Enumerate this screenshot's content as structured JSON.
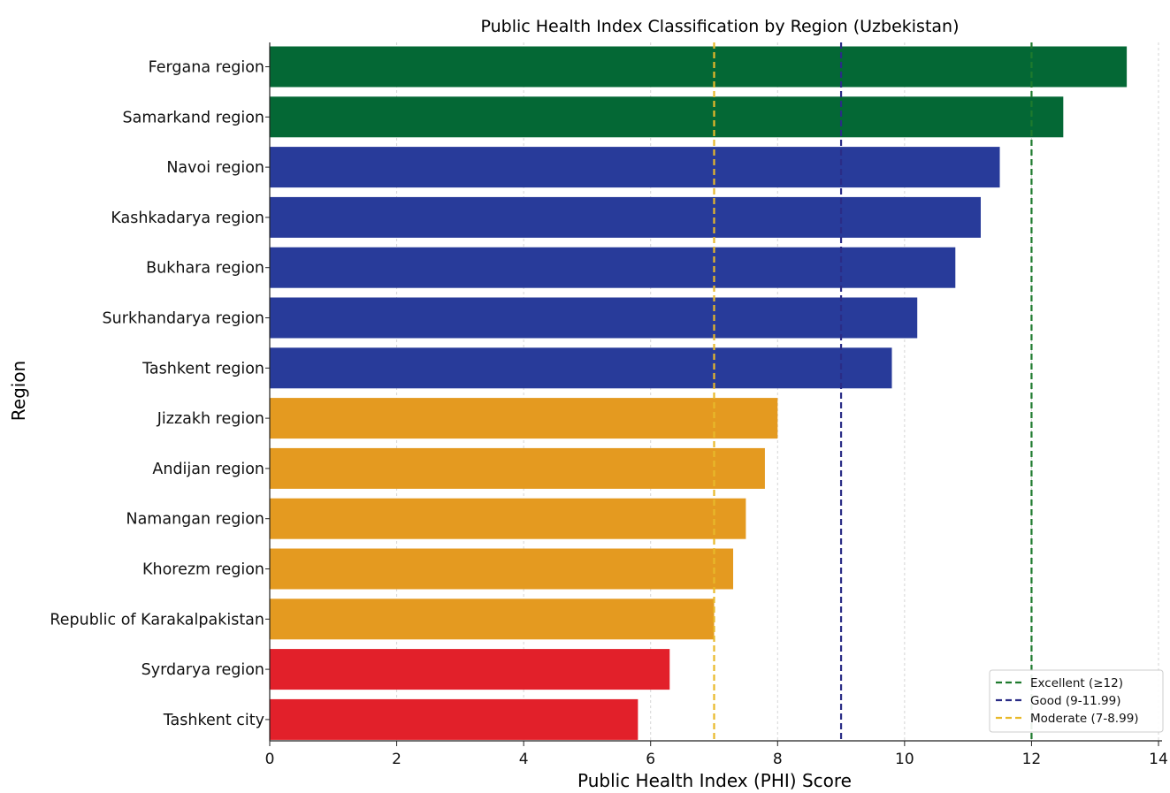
{
  "chart_data": {
    "type": "bar",
    "orientation": "horizontal",
    "title": "Public Health Index Classification by Region (Uzbekistan)",
    "xlabel": "Public Health Index (PHI) Score",
    "ylabel": "Region",
    "xlim": [
      0,
      14
    ],
    "xticks": [
      "0",
      "2",
      "4",
      "6",
      "8",
      "10",
      "12",
      "14"
    ],
    "grid": "vertical",
    "legend_position": "bottom-right",
    "colors": {
      "excellent": "#046835",
      "good": "#283B9A",
      "moderate": "#E49A20",
      "low": "#E2202A"
    },
    "categories": [
      "Fergana region",
      "Samarkand region",
      "Navoi region",
      "Kashkadarya region",
      "Bukhara region",
      "Surkhandarya region",
      "Tashkent region",
      "Jizzakh region",
      "Andijan region",
      "Namangan region",
      "Khorezm region",
      "Republic of Karakalpakistan",
      "Syrdarya region",
      "Tashkent city"
    ],
    "values": [
      13.5,
      12.5,
      11.5,
      11.2,
      10.8,
      10.2,
      9.8,
      8.0,
      7.8,
      7.5,
      7.3,
      7.0,
      6.3,
      5.8
    ],
    "classes": [
      "excellent",
      "excellent",
      "good",
      "good",
      "good",
      "good",
      "good",
      "moderate",
      "moderate",
      "moderate",
      "moderate",
      "moderate",
      "low",
      "low"
    ],
    "thresholds": [
      {
        "label": "Excellent (≥12)",
        "value": 12,
        "color": "#1E7A2E"
      },
      {
        "label": "Good (9-11.99)",
        "value": 9,
        "color": "#2A2C86"
      },
      {
        "label": "Moderate (7-8.99)",
        "value": 7,
        "color": "#E8B92A"
      }
    ]
  }
}
